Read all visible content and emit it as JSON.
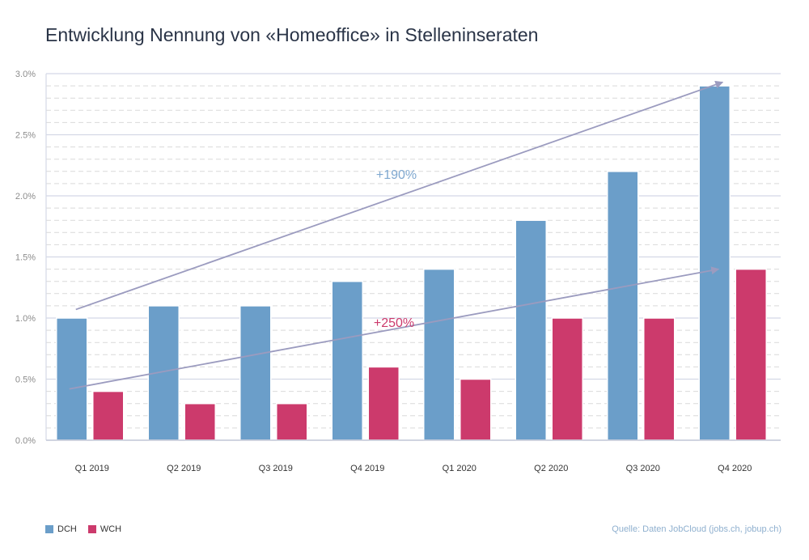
{
  "chart_data": {
    "type": "bar",
    "title": "Entwicklung Nennung von «Homeoffice» in Stelleninseraten",
    "categories": [
      "Q1 2019",
      "Q2 2019",
      "Q3 2019",
      "Q4 2019",
      "Q1 2020",
      "Q2 2020",
      "Q3 2020",
      "Q4 2020"
    ],
    "series": [
      {
        "name": "DCH",
        "color": "#6b9ec9",
        "values": [
          1.0,
          1.1,
          1.1,
          1.3,
          1.4,
          1.8,
          2.2,
          2.9
        ]
      },
      {
        "name": "WCH",
        "color": "#cc3a6c",
        "values": [
          0.4,
          0.3,
          0.3,
          0.6,
          0.5,
          1.0,
          1.0,
          1.4
        ]
      }
    ],
    "ylim": [
      0,
      3.0
    ],
    "yticks": [
      "0.0%",
      "0.5%",
      "1.0%",
      "1.5%",
      "2.0%",
      "2.5%",
      "3.0%"
    ],
    "ytick_values": [
      0,
      0.5,
      1.0,
      1.5,
      2.0,
      2.5,
      3.0
    ],
    "grid": true,
    "legend": "bottom-left",
    "annotations": [
      {
        "text": "+190%",
        "color": "#7fa8d0",
        "from": {
          "category": "Q1 2019",
          "value": 1.07
        },
        "to": {
          "category": "Q4 2020",
          "value": 2.93
        }
      },
      {
        "text": "+250%",
        "color": "#cc3a6c",
        "from": {
          "category": "Q1 2019",
          "value": 0.42
        },
        "to": {
          "category": "Q4 2020",
          "value": 1.4
        }
      }
    ],
    "source": "Quelle: Daten JobCloud (jobs.ch, jobup.ch)"
  }
}
